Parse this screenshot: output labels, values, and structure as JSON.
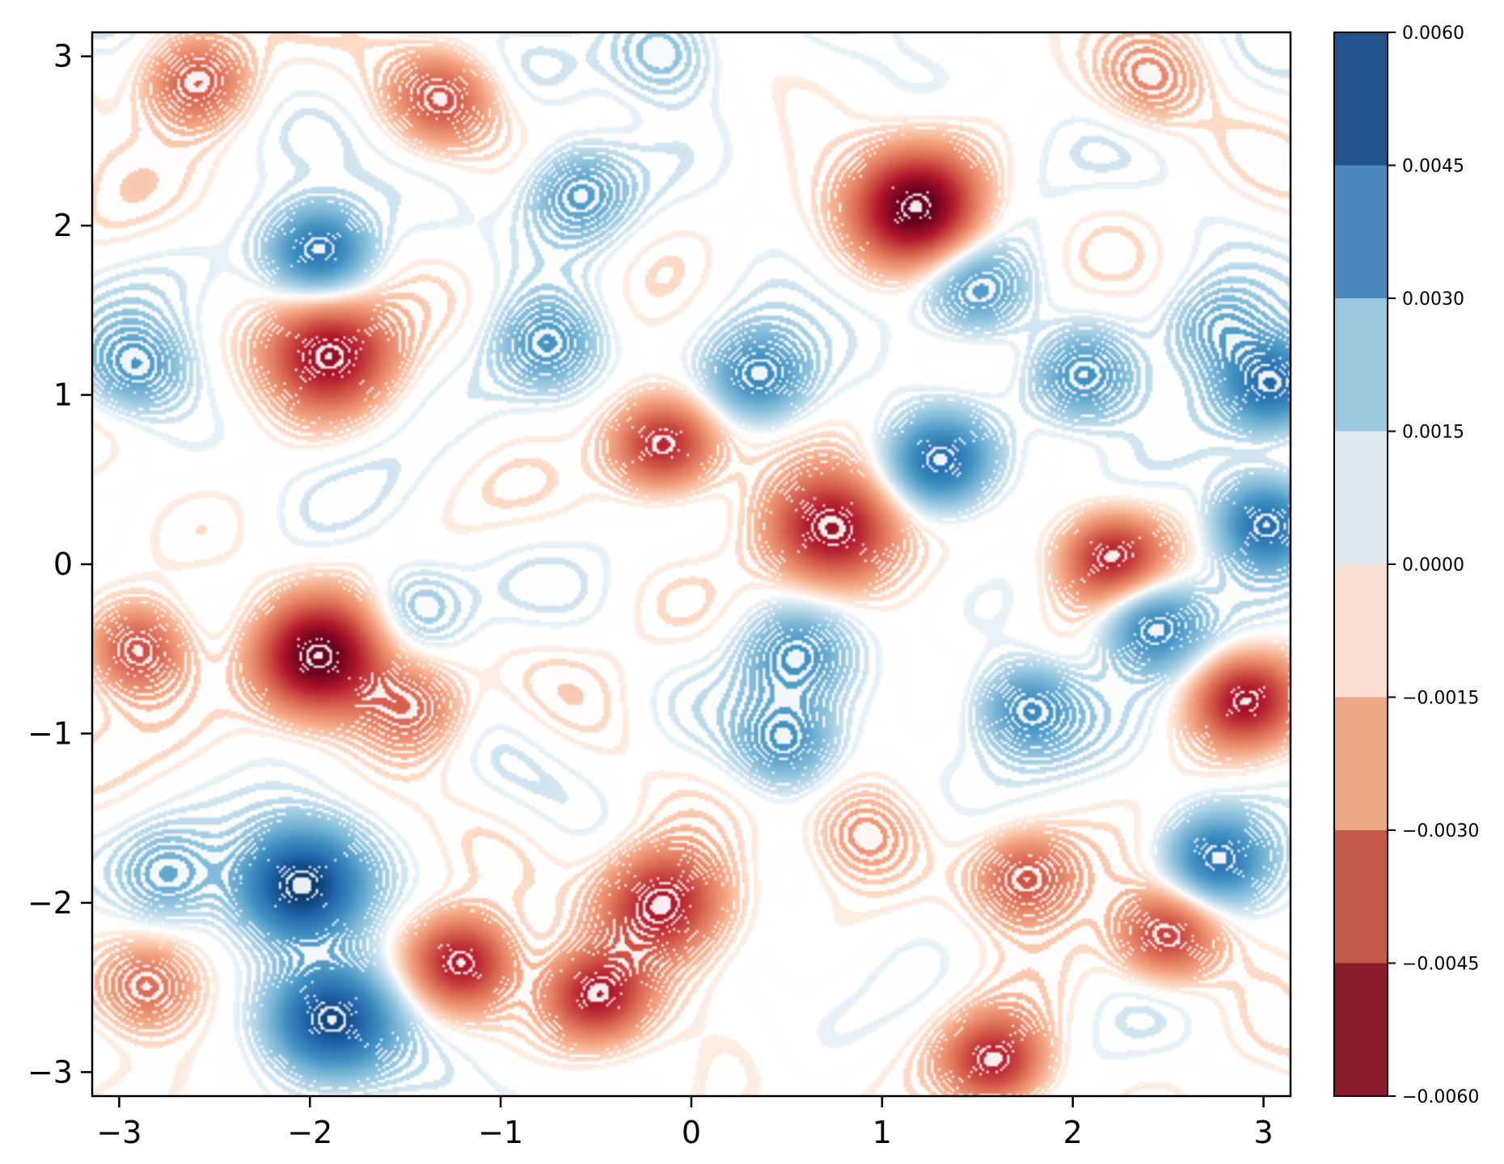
{
  "chart_data": {
    "type": "contour",
    "title": "",
    "xlabel": "",
    "ylabel": "",
    "xlim": [
      -3.14159,
      3.14159
    ],
    "ylim": [
      -3.14159,
      3.14159
    ],
    "x_ticks": [
      -3,
      -2,
      -1,
      0,
      1,
      2,
      3
    ],
    "y_ticks": [
      -3,
      -2,
      -1,
      0,
      1,
      2,
      3
    ],
    "x_tick_labels": [
      "−3",
      "−2",
      "−1",
      "0",
      "1",
      "2",
      "3"
    ],
    "y_tick_labels": [
      "−3",
      "−2",
      "−1",
      "0",
      "1",
      "2",
      "3"
    ],
    "grid": false,
    "colormap": "RdBu",
    "colorbar": {
      "position": "right",
      "levels": [
        -0.006,
        -0.0045,
        -0.003,
        -0.0015,
        0.0,
        0.0015,
        0.003,
        0.0045,
        0.006
      ],
      "tick_labels": [
        "−0.0060",
        "−0.0045",
        "−0.0030",
        "−0.0015",
        "0.0000",
        "0.0015",
        "0.0030",
        "0.0045",
        "0.0060"
      ],
      "band_colors": [
        "#8b1a2a",
        "#c65a49",
        "#eea785",
        "#f9e0d2",
        "#dde8f1",
        "#9dc6df",
        "#4a88be",
        "#24528f"
      ]
    },
    "features": [
      {
        "x": 1.2,
        "y": 2.1,
        "value": -0.0062
      },
      {
        "x": -1.95,
        "y": -0.55,
        "value": -0.006
      },
      {
        "x": -1.9,
        "y": 1.25,
        "value": -0.005
      },
      {
        "x": -0.15,
        "y": 0.7,
        "value": -0.0045
      },
      {
        "x": 0.75,
        "y": 0.2,
        "value": -0.005
      },
      {
        "x": 2.2,
        "y": 0.05,
        "value": -0.0045
      },
      {
        "x": 2.9,
        "y": -0.8,
        "value": -0.0045
      },
      {
        "x": -2.9,
        "y": -0.5,
        "value": -0.004
      },
      {
        "x": -0.15,
        "y": -2.0,
        "value": -0.005
      },
      {
        "x": -1.2,
        "y": -2.35,
        "value": -0.0045
      },
      {
        "x": -0.5,
        "y": -2.55,
        "value": -0.0045
      },
      {
        "x": 1.6,
        "y": -2.95,
        "value": -0.0045
      },
      {
        "x": 2.5,
        "y": -2.2,
        "value": -0.004
      },
      {
        "x": 1.75,
        "y": -1.85,
        "value": -0.0035
      },
      {
        "x": -2.6,
        "y": 2.85,
        "value": -0.0035
      },
      {
        "x": -1.3,
        "y": 2.75,
        "value": -0.003
      },
      {
        "x": -1.45,
        "y": -0.85,
        "value": -0.003
      },
      {
        "x": -2.85,
        "y": -2.5,
        "value": -0.0035
      },
      {
        "x": 0.9,
        "y": -1.6,
        "value": -0.002
      },
      {
        "x": 2.4,
        "y": 2.85,
        "value": -0.002
      },
      {
        "x": -2.05,
        "y": -1.9,
        "value": 0.006
      },
      {
        "x": -1.9,
        "y": -2.7,
        "value": 0.0055
      },
      {
        "x": -1.95,
        "y": 1.85,
        "value": 0.0045
      },
      {
        "x": 3.05,
        "y": 1.05,
        "value": 0.0045
      },
      {
        "x": 3.0,
        "y": 0.25,
        "value": 0.0045
      },
      {
        "x": 1.3,
        "y": 0.6,
        "value": 0.004
      },
      {
        "x": 2.4,
        "y": -0.35,
        "value": 0.004
      },
      {
        "x": 2.75,
        "y": -1.75,
        "value": 0.004
      },
      {
        "x": 0.35,
        "y": 1.1,
        "value": 0.0035
      },
      {
        "x": 0.5,
        "y": -1.05,
        "value": 0.0035
      },
      {
        "x": 1.75,
        "y": -0.85,
        "value": 0.0035
      },
      {
        "x": -2.9,
        "y": 1.15,
        "value": 0.003
      },
      {
        "x": -0.75,
        "y": 1.3,
        "value": 0.003
      },
      {
        "x": 2.05,
        "y": 1.1,
        "value": 0.003
      },
      {
        "x": 1.5,
        "y": 1.6,
        "value": 0.003
      },
      {
        "x": -0.6,
        "y": 2.2,
        "value": 0.003
      },
      {
        "x": -2.75,
        "y": -1.85,
        "value": 0.0025
      },
      {
        "x": 0.55,
        "y": -0.55,
        "value": 0.0025
      },
      {
        "x": -1.45,
        "y": -0.25,
        "value": 0.002
      },
      {
        "x": 2.75,
        "y": 1.4,
        "value": 0.0025
      },
      {
        "x": -0.15,
        "y": 3.0,
        "value": 0.002
      }
    ]
  }
}
